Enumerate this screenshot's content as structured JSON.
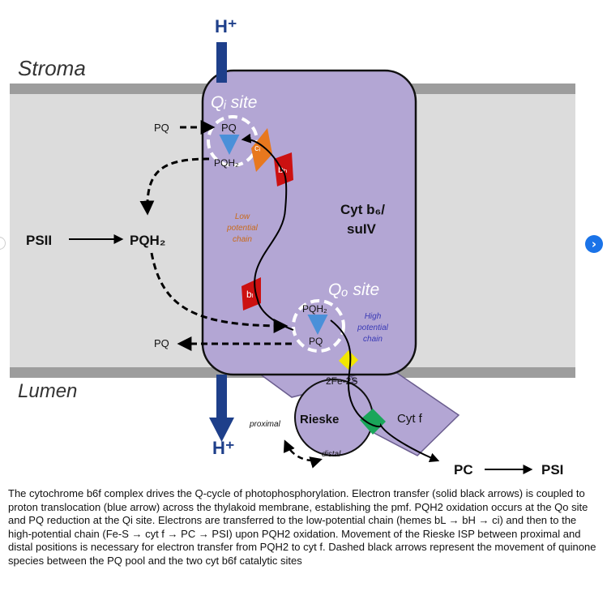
{
  "diagram": {
    "proton_top": "H⁺",
    "proton_bottom": "H⁺",
    "stroma_label": "Stroma",
    "lumen_label": "Lumen",
    "qi_site_label": "Qᵢ site",
    "qo_site_label": "Qₒ site",
    "pq_pool_top": "PQ",
    "pq_pool_bottom": "PQ",
    "pqh2_pool": "PQH₂",
    "psii": "PSII",
    "qi_pq": "PQ",
    "qi_pqh2": "PQH₂",
    "ci": "cᵢ",
    "bh": "bₕ",
    "bl": "bₗ",
    "cyt_b6_line1": "Cyt b₆/",
    "cyt_b6_line2": "suIV",
    "low_potential": [
      "Low",
      "potential",
      "chain"
    ],
    "high_potential": [
      "High",
      "potential",
      "chain"
    ],
    "qo_pqh2": "PQH₂",
    "qo_pq": "PQ",
    "fes": "2Fe-2S",
    "rieske": "Rieske",
    "cytf": "Cyt f",
    "proximal": "proximal",
    "distal": "distal",
    "pc": "PC",
    "psi": "PSI"
  },
  "caption": "The cytochrome b6f complex drives the Q-cycle of photophosphorylation. Electron transfer (solid black arrows) is coupled to proton translocation (blue arrow) across the thylakoid membrane, establishing the pmf. PQH2 oxidation occurs at the Qo site and PQ reduction at the Qi site. Electrons are transferred to the low-potential chain (hemes bL → bH → ci) and then to the high-potential chain (Fe-S → cyt f → PC → PSI) upon PQH2 oxidation. Movement of the Rieske ISP between proximal and distal positions is necessary for electron transfer from PQH2 to cyt f. Dashed black arrows represent the movement of quinone species between the PQ pool and the two cyt b6f catalytic sites",
  "nav": {
    "next_icon": "chevron-right-icon",
    "next_glyph": "›"
  },
  "colors": {
    "membrane": "#dcdcdc",
    "membrane_edge": "#9d9d9d",
    "complex": "#b3a6d4",
    "heme": "#cc1111",
    "ci": "#e8781e",
    "proton": "#1e3f8a",
    "qarrow": "#4a90d9",
    "fes": "#f2e600",
    "cytf_heme": "#1aa65a"
  }
}
